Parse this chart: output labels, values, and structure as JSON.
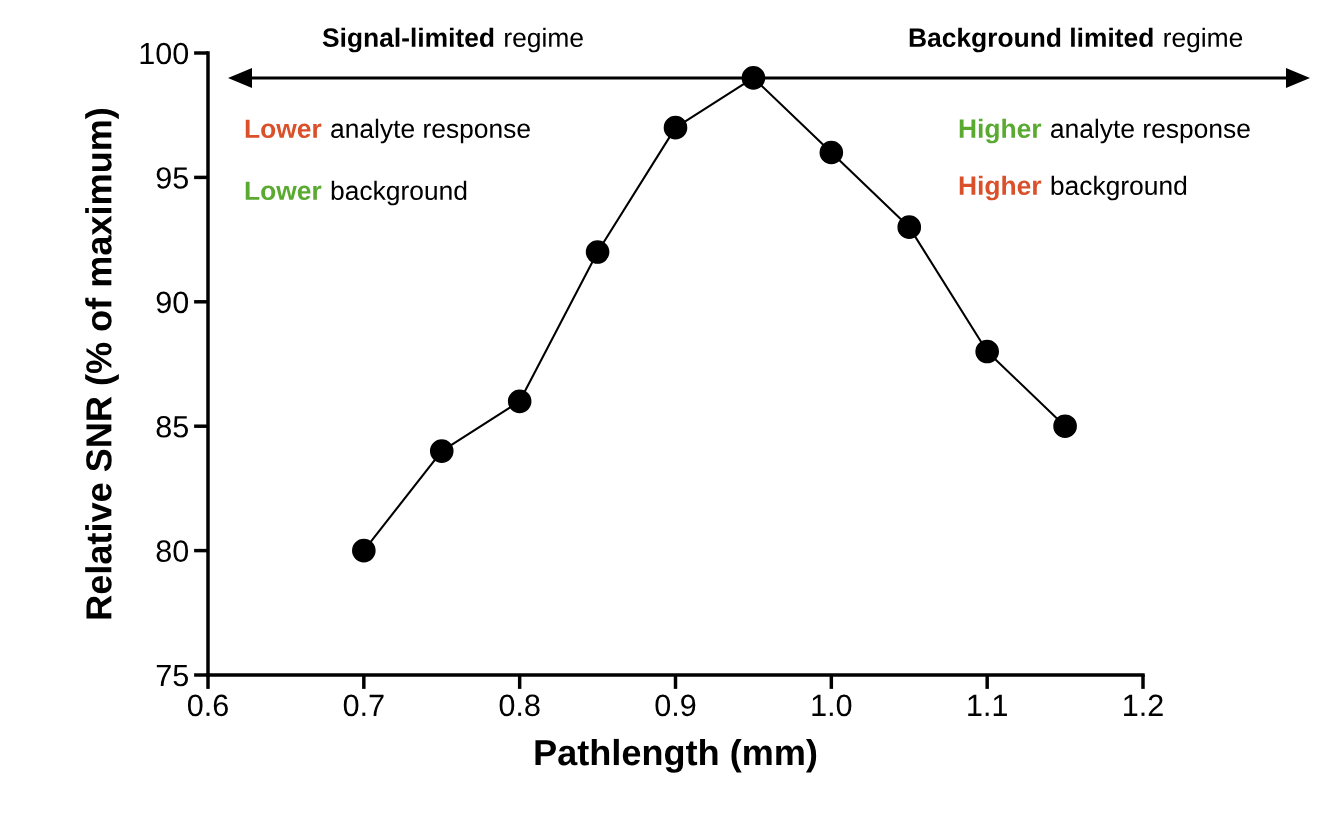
{
  "chart_data": {
    "type": "line",
    "xlabel": "Pathlength (mm)",
    "ylabel": "Relative SNR (% of maximum)",
    "x": [
      0.7,
      0.75,
      0.8,
      0.85,
      0.9,
      0.95,
      1.0,
      1.05,
      1.1,
      1.15
    ],
    "series": [
      {
        "color": "#000000",
        "values": [
          80,
          84,
          86,
          92,
          97,
          99,
          96,
          93,
          88,
          85
        ]
      }
    ],
    "xlim": [
      0.6,
      1.2
    ],
    "xticks": [
      {
        "value": 0.6,
        "label": "0.6"
      },
      {
        "value": 0.7,
        "label": "0.7"
      },
      {
        "value": 0.8,
        "label": "0.8"
      },
      {
        "value": 0.9,
        "label": "0.9"
      },
      {
        "value": 1.0,
        "label": "1.0"
      },
      {
        "value": 1.1,
        "label": "1.1"
      },
      {
        "value": 1.2,
        "label": "1.2"
      }
    ],
    "ylim": [
      75,
      100
    ],
    "yticks": [
      75,
      80,
      85,
      90,
      95,
      100
    ],
    "marker": "circle",
    "line_style": "solid",
    "grid": false,
    "legend": false,
    "annotations": [
      "Signal-limited",
      "regime",
      "Background limited",
      "regime",
      "Lower",
      "analyte response",
      "Lower",
      "background",
      "Higher",
      "analyte response",
      "Higher",
      "background"
    ]
  }
}
